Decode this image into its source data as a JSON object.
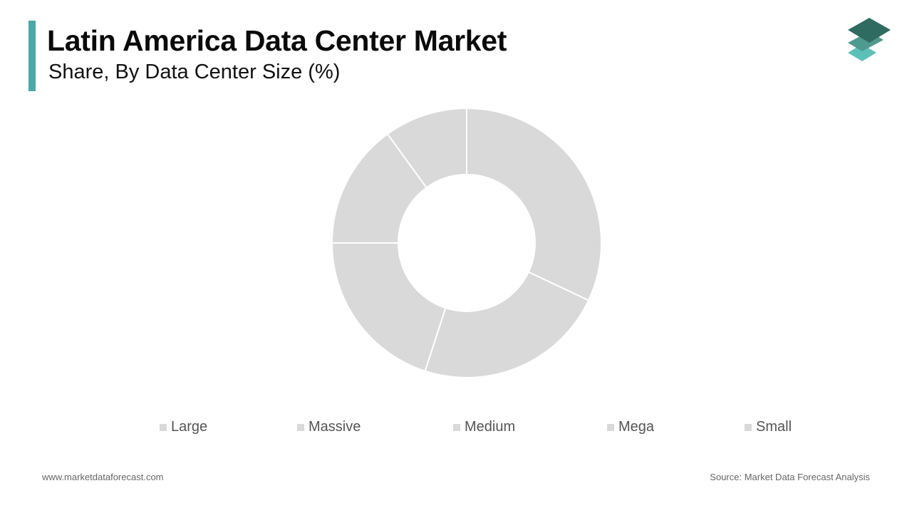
{
  "header": {
    "title": "Latin America Data Center Market",
    "subtitle": "Share, By Data Center Size (%)"
  },
  "colors": {
    "accent": "#4aa8a8",
    "slice": "#d9d9d9",
    "slice_border": "#ffffff",
    "legend_swatch": "#d9d9d9",
    "logo_dark": "#2f6b60",
    "logo_mid": "#4f9a90",
    "logo_light": "#5cc0b8"
  },
  "logo": {
    "icon": "stacked-layers-icon"
  },
  "chart_data": {
    "type": "pie",
    "categories": [
      "Large",
      "Massive",
      "Medium",
      "Mega",
      "Small"
    ],
    "values": [
      32,
      23,
      20,
      15,
      10
    ],
    "title": "Share, By Data Center Size (%)",
    "donut": true,
    "legend_position": "bottom"
  },
  "footer": {
    "website": "www.marketdataforecast.com",
    "source": "Source: Market Data Forecast Analysis"
  }
}
